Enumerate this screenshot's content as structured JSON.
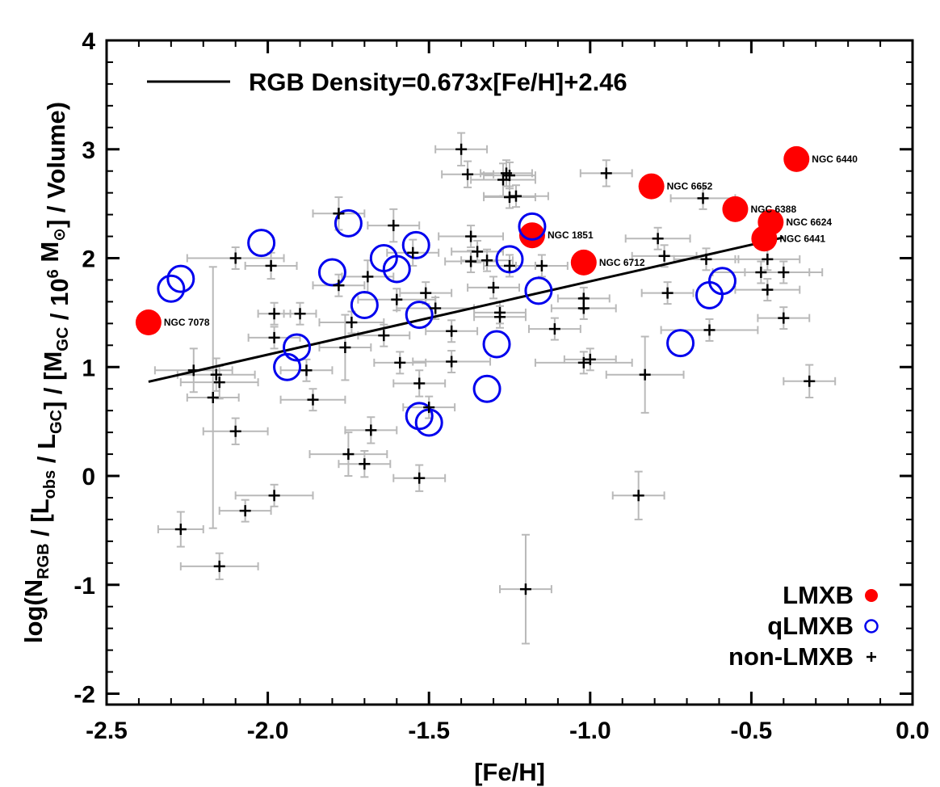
{
  "chart_data": {
    "type": "scatter",
    "xlabel": "[Fe/H]",
    "ylabel": {
      "parts": [
        {
          "t": "log(N",
          "s": "n"
        },
        {
          "t": "RGB",
          "s": "sub"
        },
        {
          "t": " / [L",
          "s": "n"
        },
        {
          "t": "obs",
          "s": "sub"
        },
        {
          "t": " / L",
          "s": "n"
        },
        {
          "t": "GC",
          "s": "sub"
        },
        {
          "t": "] / [M",
          "s": "n"
        },
        {
          "t": "GC",
          "s": "sub"
        },
        {
          "t": " / 10",
          "s": "n"
        },
        {
          "t": "6",
          "s": "sup"
        },
        {
          "t": " M",
          "s": "n"
        },
        {
          "t": "⊙",
          "s": "sub"
        },
        {
          "t": "] / Volume)",
          "s": "n"
        }
      ]
    },
    "xlim": [
      -2.5,
      0.0
    ],
    "ylim": [
      -2.1,
      4.0
    ],
    "xticks": [
      -2.5,
      -2.0,
      -1.5,
      -1.0,
      -0.5,
      0.0
    ],
    "xtick_labels": [
      "-2.5",
      "-2.0",
      "-1.5",
      "-1.0",
      "-0.5",
      "0.0"
    ],
    "yticks": [
      -2,
      -1,
      0,
      1,
      2,
      3,
      4
    ],
    "ytick_labels": [
      "-2",
      "-1",
      "0",
      "1",
      "2",
      "3",
      "4"
    ],
    "fit": {
      "label": "RGB Density=0.673x[Fe/H]+2.46",
      "slope": 0.673,
      "intercept": 2.46,
      "x_range": [
        -2.37,
        -0.4
      ]
    },
    "legend": {
      "placement": "bottom-right",
      "entries": [
        {
          "label": "LMXB",
          "marker": "filled-circle",
          "color": "#ff0000"
        },
        {
          "label": "qLMXB",
          "marker": "open-circle",
          "color": "#0000ee"
        },
        {
          "label": "non-LMXB",
          "marker": "plus",
          "color": "#000000"
        }
      ]
    },
    "series": [
      {
        "name": "LMXB",
        "color": "#ff0000",
        "points": [
          {
            "x": -2.37,
            "y": 1.41,
            "label": "NGC 7078"
          },
          {
            "x": -1.18,
            "y": 2.21,
            "label": "NGC 1851"
          },
          {
            "x": -1.02,
            "y": 1.96,
            "label": "NGC 6712"
          },
          {
            "x": -0.81,
            "y": 2.66,
            "label": "NGC 6652"
          },
          {
            "x": -0.55,
            "y": 2.45,
            "label": "NGC 6388"
          },
          {
            "x": -0.44,
            "y": 2.33,
            "label": "NGC 6624"
          },
          {
            "x": -0.46,
            "y": 2.18,
            "label": "NGC 6441"
          },
          {
            "x": -0.36,
            "y": 2.91,
            "label": "NGC 6440"
          }
        ]
      },
      {
        "name": "qLMXB",
        "color": "#0000ee",
        "points": [
          {
            "x": -2.3,
            "y": 1.72
          },
          {
            "x": -2.27,
            "y": 1.81
          },
          {
            "x": -2.02,
            "y": 2.14
          },
          {
            "x": -1.94,
            "y": 1.0
          },
          {
            "x": -1.91,
            "y": 1.18
          },
          {
            "x": -1.8,
            "y": 1.87
          },
          {
            "x": -1.75,
            "y": 2.32
          },
          {
            "x": -1.7,
            "y": 1.57
          },
          {
            "x": -1.64,
            "y": 2.0
          },
          {
            "x": -1.6,
            "y": 1.9
          },
          {
            "x": -1.54,
            "y": 2.12
          },
          {
            "x": -1.53,
            "y": 1.48
          },
          {
            "x": -1.53,
            "y": 0.55
          },
          {
            "x": -1.5,
            "y": 0.49
          },
          {
            "x": -1.32,
            "y": 0.8
          },
          {
            "x": -1.29,
            "y": 1.21
          },
          {
            "x": -1.25,
            "y": 1.99
          },
          {
            "x": -1.18,
            "y": 2.29
          },
          {
            "x": -1.16,
            "y": 1.7
          },
          {
            "x": -0.72,
            "y": 1.22
          },
          {
            "x": -0.63,
            "y": 1.66
          },
          {
            "x": -0.59,
            "y": 1.79
          }
        ]
      },
      {
        "name": "non-LMXB",
        "color": "#000000",
        "points": [
          {
            "x": -2.27,
            "y": -0.49,
            "xe": 0.07,
            "ye": 0.16
          },
          {
            "x": -2.23,
            "y": 0.97,
            "xe": 0.12,
            "ye": 0.2
          },
          {
            "x": -2.17,
            "y": 0.72,
            "xe": 0.08,
            "ye": 1.2
          },
          {
            "x": -2.16,
            "y": 0.93,
            "xe": 0.12,
            "ye": 0.15
          },
          {
            "x": -2.15,
            "y": 0.86,
            "xe": 0.12,
            "ye": 0.15
          },
          {
            "x": -2.15,
            "y": -0.83,
            "xe": 0.12,
            "ye": 0.12
          },
          {
            "x": -2.1,
            "y": 2.0,
            "xe": 0.15,
            "ye": 0.1
          },
          {
            "x": -2.1,
            "y": 0.41,
            "xe": 0.1,
            "ye": 0.12
          },
          {
            "x": -2.07,
            "y": -0.32,
            "xe": 0.08,
            "ye": 0.1
          },
          {
            "x": -1.99,
            "y": 1.93,
            "xe": 0.08,
            "ye": 0.12
          },
          {
            "x": -1.98,
            "y": 1.49,
            "xe": 0.05,
            "ye": 0.1
          },
          {
            "x": -1.98,
            "y": 1.27,
            "xe": 0.08,
            "ye": 0.1
          },
          {
            "x": -1.98,
            "y": -0.18,
            "xe": 0.12,
            "ye": 0.1
          },
          {
            "x": -1.9,
            "y": 1.49,
            "xe": 0.05,
            "ye": 0.1
          },
          {
            "x": -1.88,
            "y": 0.97,
            "xe": 0.08,
            "ye": 0.1
          },
          {
            "x": -1.86,
            "y": 0.7,
            "xe": 0.1,
            "ye": 0.1
          },
          {
            "x": -1.78,
            "y": 2.41,
            "xe": 0.08,
            "ye": 0.15
          },
          {
            "x": -1.78,
            "y": 1.75,
            "xe": 0.08,
            "ye": 0.1
          },
          {
            "x": -1.76,
            "y": 1.18,
            "xe": 0.08,
            "ye": 0.3
          },
          {
            "x": -1.75,
            "y": 0.2,
            "xe": 0.12,
            "ye": 0.2
          },
          {
            "x": -1.74,
            "y": 1.41,
            "xe": 0.1,
            "ye": 0.1
          },
          {
            "x": -1.7,
            "y": 0.11,
            "xe": 0.08,
            "ye": 0.12
          },
          {
            "x": -1.69,
            "y": 1.83,
            "xe": 0.08,
            "ye": 0.15
          },
          {
            "x": -1.68,
            "y": 0.42,
            "xe": 0.08,
            "ye": 0.12
          },
          {
            "x": -1.64,
            "y": 1.29,
            "xe": 0.08,
            "ye": 0.1
          },
          {
            "x": -1.61,
            "y": 2.3,
            "xe": 0.08,
            "ye": 0.15
          },
          {
            "x": -1.6,
            "y": 1.62,
            "xe": 0.12,
            "ye": 0.1
          },
          {
            "x": -1.59,
            "y": 1.04,
            "xe": 0.08,
            "ye": 0.1
          },
          {
            "x": -1.55,
            "y": 2.05,
            "xe": 0.08,
            "ye": 0.12
          },
          {
            "x": -1.53,
            "y": 0.85,
            "xe": 0.08,
            "ye": 0.12
          },
          {
            "x": -1.53,
            "y": -0.02,
            "xe": 0.08,
            "ye": 0.12
          },
          {
            "x": -1.51,
            "y": 1.68,
            "xe": 0.08,
            "ye": 0.1
          },
          {
            "x": -1.5,
            "y": 0.63,
            "xe": 0.08,
            "ye": 0.1
          },
          {
            "x": -1.48,
            "y": 1.54,
            "xe": 0.12,
            "ye": 0.1
          },
          {
            "x": -1.43,
            "y": 1.33,
            "xe": 0.08,
            "ye": 0.1
          },
          {
            "x": -1.43,
            "y": 1.05,
            "xe": 0.12,
            "ye": 0.1
          },
          {
            "x": -1.4,
            "y": 3.0,
            "xe": 0.08,
            "ye": 0.15
          },
          {
            "x": -1.38,
            "y": 2.77,
            "xe": 0.08,
            "ye": 0.12
          },
          {
            "x": -1.37,
            "y": 2.2,
            "xe": 0.1,
            "ye": 0.1
          },
          {
            "x": -1.37,
            "y": 1.97,
            "xe": 0.08,
            "ye": 0.1
          },
          {
            "x": -1.35,
            "y": 2.06,
            "xe": 0.08,
            "ye": 0.1
          },
          {
            "x": -1.32,
            "y": 1.98,
            "xe": 0.08,
            "ye": 0.1
          },
          {
            "x": -1.3,
            "y": 1.73,
            "xe": 0.08,
            "ye": 0.1
          },
          {
            "x": -1.28,
            "y": 1.5,
            "xe": 0.08,
            "ye": 0.1
          },
          {
            "x": -1.28,
            "y": 1.46,
            "xe": 0.08,
            "ye": 0.1
          },
          {
            "x": -1.27,
            "y": 2.72,
            "xe": 0.1,
            "ye": 0.15
          },
          {
            "x": -1.26,
            "y": 2.78,
            "xe": 0.08,
            "ye": 0.12
          },
          {
            "x": -1.25,
            "y": 2.76,
            "xe": 0.08,
            "ye": 0.12
          },
          {
            "x": -1.25,
            "y": 2.56,
            "xe": 0.08,
            "ye": 0.1
          },
          {
            "x": -1.23,
            "y": 2.57,
            "xe": 0.1,
            "ye": 0.1
          },
          {
            "x": -1.25,
            "y": 1.93,
            "xe": 0.08,
            "ye": 0.1
          },
          {
            "x": -1.2,
            "y": -1.04,
            "xe": 0.08,
            "ye": 0.5
          },
          {
            "x": -1.15,
            "y": 1.93,
            "xe": 0.08,
            "ye": 0.1
          },
          {
            "x": -1.11,
            "y": 1.35,
            "xe": 0.08,
            "ye": 0.1
          },
          {
            "x": -1.02,
            "y": 1.63,
            "xe": 0.08,
            "ye": 0.1
          },
          {
            "x": -1.02,
            "y": 1.54,
            "xe": 0.1,
            "ye": 0.1
          },
          {
            "x": -1.02,
            "y": 1.04,
            "xe": 0.15,
            "ye": 0.1
          },
          {
            "x": -1.0,
            "y": 1.07,
            "xe": 0.08,
            "ye": 0.1
          },
          {
            "x": -0.95,
            "y": 2.78,
            "xe": 0.08,
            "ye": 0.12
          },
          {
            "x": -0.85,
            "y": -0.18,
            "xe": 0.08,
            "ye": 0.22
          },
          {
            "x": -0.83,
            "y": 0.93,
            "xe": 0.12,
            "ye": 0.35
          },
          {
            "x": -0.79,
            "y": 2.18,
            "xe": 0.1,
            "ye": 0.1
          },
          {
            "x": -0.77,
            "y": 2.02,
            "xe": 0.1,
            "ye": 0.1
          },
          {
            "x": -0.76,
            "y": 1.68,
            "xe": 0.08,
            "ye": 0.1
          },
          {
            "x": -0.65,
            "y": 2.55,
            "xe": 0.1,
            "ye": 0.1
          },
          {
            "x": -0.64,
            "y": 1.99,
            "xe": 0.1,
            "ye": 0.1
          },
          {
            "x": -0.63,
            "y": 1.34,
            "xe": 0.15,
            "ye": 0.1
          },
          {
            "x": -0.47,
            "y": 1.87,
            "xe": 0.15,
            "ye": 0.1
          },
          {
            "x": -0.45,
            "y": 1.99,
            "xe": 0.1,
            "ye": 0.1
          },
          {
            "x": -0.45,
            "y": 1.71,
            "xe": 0.1,
            "ye": 0.1
          },
          {
            "x": -0.4,
            "y": 1.87,
            "xe": 0.12,
            "ye": 0.1
          },
          {
            "x": -0.4,
            "y": 1.45,
            "xe": 0.08,
            "ye": 0.1
          },
          {
            "x": -0.32,
            "y": 0.87,
            "xe": 0.08,
            "ye": 0.15
          }
        ]
      }
    ]
  }
}
